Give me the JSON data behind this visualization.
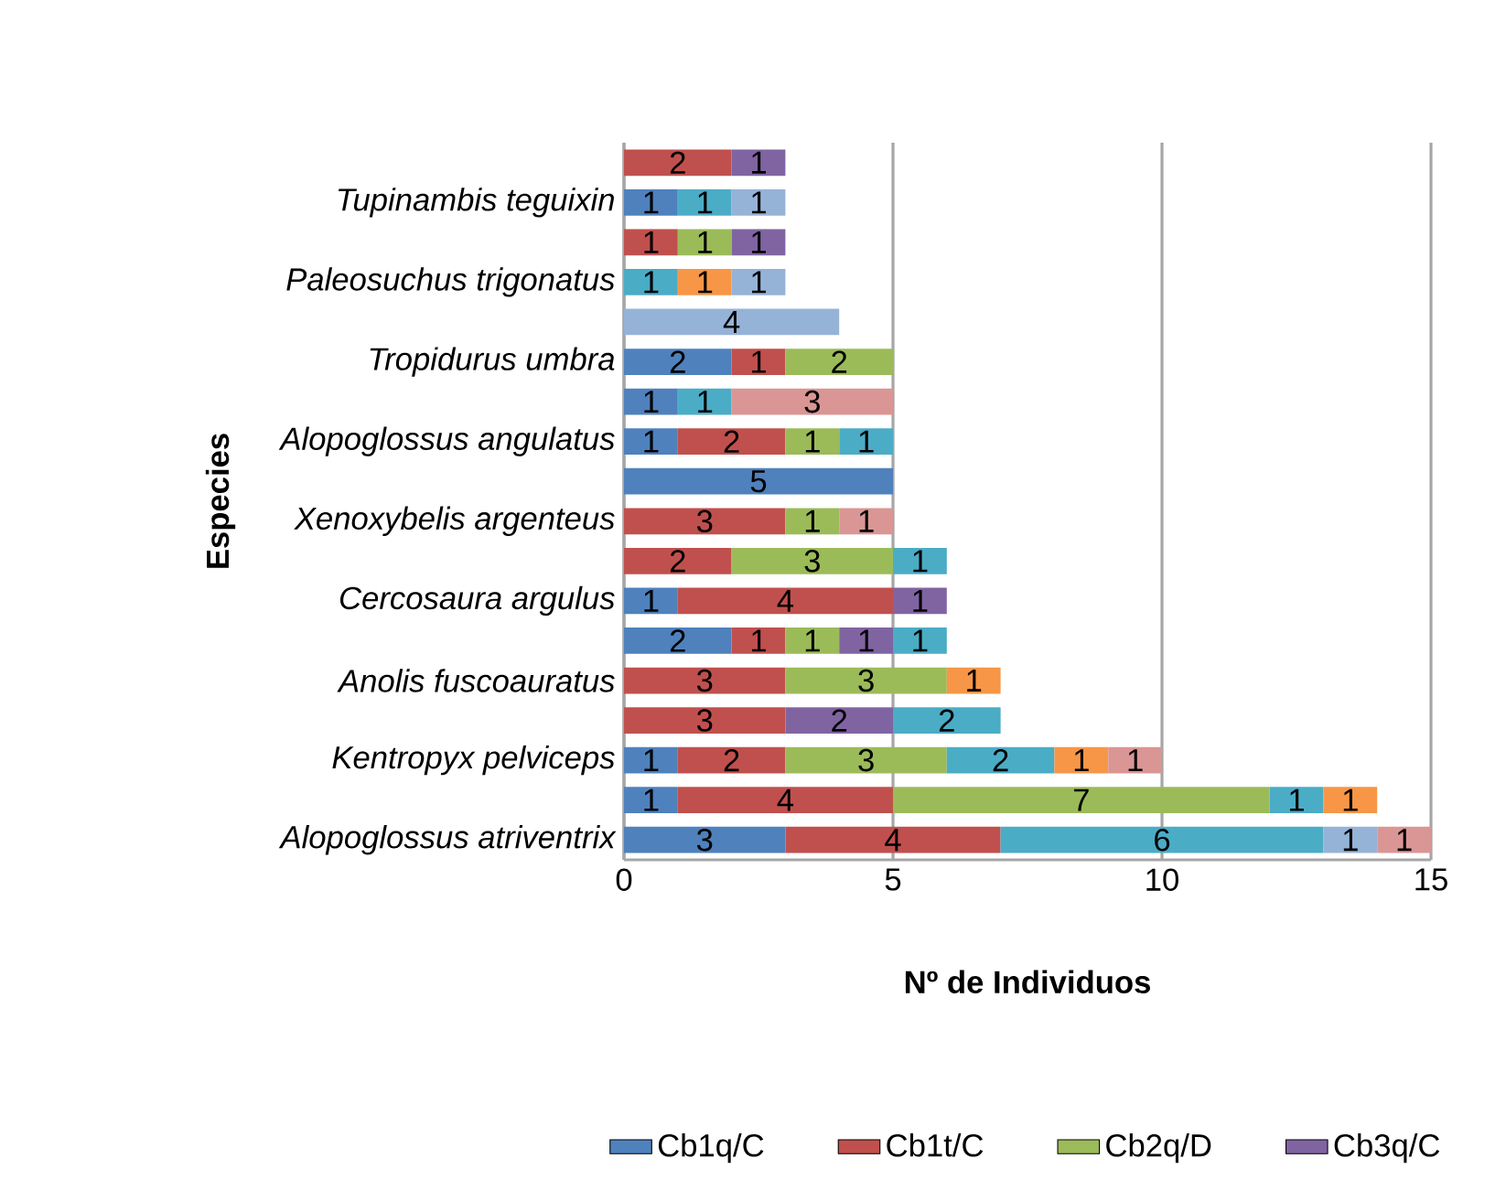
{
  "chart_data": {
    "type": "bar",
    "orientation": "horizontal",
    "stacked": true,
    "xlabel": "Nº de Individuos",
    "ylabel": "Especies",
    "categories": [
      null,
      "Tupinambis teguixin",
      null,
      "Paleosuchus trigonatus",
      null,
      "Tropidurus umbra",
      null,
      "Alopoglossus angulatus",
      null,
      "Xenoxybelis argenteus",
      null,
      "Cercosaura argulus",
      null,
      "Anolis fuscoauratus",
      null,
      "Kentropyx pelviceps",
      null,
      "Alopoglossus atriventrix"
    ],
    "series": [
      {
        "name": "Cb1q/C",
        "color": "#4f81bd",
        "values": [
          null,
          1,
          null,
          null,
          null,
          2,
          1,
          1,
          5,
          null,
          null,
          1,
          2,
          null,
          null,
          1,
          1,
          3
        ]
      },
      {
        "name": "Cb1t/C",
        "color": "#c0504d",
        "values": [
          2,
          null,
          1,
          null,
          null,
          1,
          null,
          2,
          null,
          3,
          2,
          4,
          1,
          3,
          3,
          2,
          4,
          4
        ]
      },
      {
        "name": "Cb2q/D",
        "color": "#9bbb59",
        "values": [
          null,
          null,
          1,
          null,
          null,
          2,
          null,
          1,
          null,
          1,
          3,
          null,
          1,
          3,
          null,
          3,
          7,
          null
        ]
      },
      {
        "name": "Cb3q/C",
        "color": "#8064a2",
        "values": [
          1,
          null,
          1,
          null,
          null,
          null,
          null,
          null,
          null,
          null,
          null,
          1,
          1,
          null,
          2,
          null,
          null,
          null
        ]
      },
      {
        "color": "#4bacc6",
        "values": [
          null,
          1,
          null,
          1,
          null,
          null,
          1,
          1,
          null,
          null,
          1,
          null,
          1,
          null,
          2,
          2,
          1,
          6
        ]
      },
      {
        "color": "#f79646",
        "values": [
          null,
          null,
          null,
          1,
          null,
          null,
          null,
          null,
          null,
          null,
          null,
          null,
          null,
          1,
          null,
          1,
          1,
          null
        ]
      },
      {
        "color": "#95b3d7",
        "values": [
          null,
          1,
          null,
          1,
          4,
          null,
          null,
          null,
          null,
          null,
          null,
          null,
          null,
          null,
          null,
          null,
          null,
          1
        ]
      },
      {
        "color": "#d99694",
        "values": [
          null,
          null,
          null,
          null,
          null,
          null,
          3,
          null,
          null,
          1,
          null,
          null,
          null,
          null,
          null,
          1,
          null,
          1
        ]
      }
    ],
    "xlim": [
      0,
      15
    ],
    "xticks": [
      0,
      5,
      10,
      15
    ],
    "grid": "x",
    "legend": "bottom",
    "data_labels": true
  }
}
